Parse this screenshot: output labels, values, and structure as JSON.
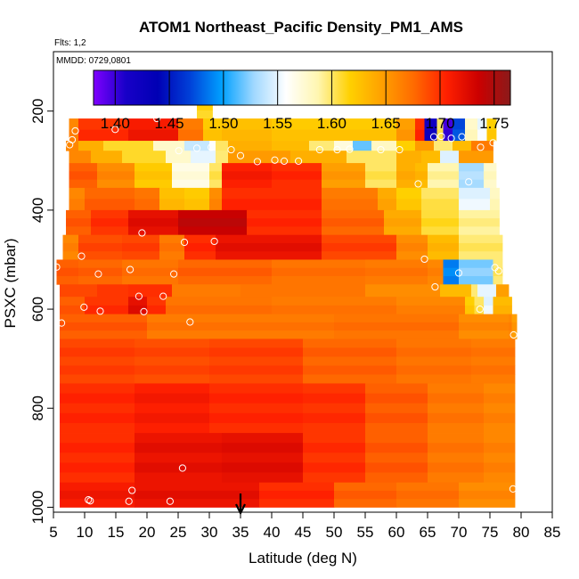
{
  "chart_data": {
    "type": "heatmap",
    "title": "ATOM1 Northeast_Pacific Density_PM1_AMS",
    "flights_label": "Flts: 1,2",
    "date_label": "MMDD: 0729,0801",
    "xlabel": "Latitude (deg N)",
    "ylabel": "PSXC (mbar)",
    "xlim": [
      5,
      85
    ],
    "ylim": [
      1010,
      80
    ],
    "x_ticks": [
      "5",
      "10",
      "15",
      "20",
      "25",
      "30",
      "35",
      "40",
      "45",
      "50",
      "55",
      "60",
      "65",
      "70",
      "75",
      "80",
      "85"
    ],
    "y_ticks": [
      "200",
      "400",
      "600",
      "800",
      "1000"
    ],
    "colorbar": {
      "range": [
        1.38,
        1.765
      ],
      "tick_labels": [
        "1.40",
        "1.45",
        "1.50",
        "1.55",
        "1.60",
        "1.65",
        "1.70",
        "1.75"
      ],
      "stops": [
        "#7f00ff",
        "#1800c8",
        "#0000b4",
        "#0040d8",
        "#00a0ff",
        "#a0d8ff",
        "#ffffff",
        "#fff6b0",
        "#ffd000",
        "#ffa000",
        "#ff6a00",
        "#ff2000",
        "#cc0000",
        "#8b1a1a"
      ]
    },
    "arrow_marker_latitude": 35,
    "bands": [
      {
        "p": [
          165,
          215
        ],
        "segments": [
          [
            28,
            30.5,
            1.61
          ]
        ]
      },
      {
        "p": [
          215,
          260
        ],
        "segments": [
          [
            7.5,
            9,
            1.66
          ],
          [
            9,
            17,
            1.7
          ],
          [
            17,
            25,
            1.71
          ],
          [
            25,
            29,
            1.67
          ],
          [
            29,
            32,
            1.62
          ],
          [
            32,
            40,
            1.63
          ],
          [
            40,
            60,
            1.62
          ],
          [
            60,
            63,
            1.65
          ],
          [
            63,
            64.5,
            1.7
          ],
          [
            64.5,
            66.5,
            1.42
          ],
          [
            66.5,
            67.5,
            1.6
          ],
          [
            67.5,
            69,
            1.4
          ],
          [
            69,
            71,
            1.47
          ],
          [
            71,
            73,
            1.58
          ],
          [
            73,
            74.5,
            1.55
          ],
          [
            74.5,
            76,
            1.62
          ]
        ]
      },
      {
        "p": [
          260,
          280
        ],
        "segments": [
          [
            7,
            9,
            1.66
          ],
          [
            9,
            13,
            1.64
          ],
          [
            13,
            21,
            1.61
          ],
          [
            21,
            26,
            1.58
          ],
          [
            26,
            30,
            1.54
          ],
          [
            30,
            31,
            1.56
          ],
          [
            31,
            33,
            1.6
          ],
          [
            33,
            40,
            1.64
          ],
          [
            40,
            46,
            1.63
          ],
          [
            46,
            50,
            1.6
          ],
          [
            50,
            53,
            1.57
          ],
          [
            53,
            56,
            1.52
          ],
          [
            56,
            60,
            1.58
          ],
          [
            60,
            63,
            1.62
          ],
          [
            63,
            66,
            1.65
          ],
          [
            66,
            69,
            1.6
          ],
          [
            69,
            72,
            1.63
          ],
          [
            72,
            75.5,
            1.67
          ]
        ]
      },
      {
        "p": [
          280,
          305
        ],
        "segments": [
          [
            7.5,
            11,
            1.66
          ],
          [
            11,
            16,
            1.64
          ],
          [
            16,
            23,
            1.61
          ],
          [
            23,
            27,
            1.58
          ],
          [
            27,
            31,
            1.55
          ],
          [
            31,
            33,
            1.6
          ],
          [
            33,
            43,
            1.65
          ],
          [
            43,
            52,
            1.64
          ],
          [
            52,
            60,
            1.6
          ],
          [
            60,
            64,
            1.64
          ],
          [
            64,
            67,
            1.63
          ],
          [
            67,
            70,
            1.55
          ],
          [
            70,
            75.5,
            1.65
          ]
        ]
      },
      {
        "p": [
          305,
          355
        ],
        "segments": [
          [
            7.5,
            12,
            1.68
          ],
          [
            12,
            18,
            1.66
          ],
          [
            18,
            24,
            1.62
          ],
          [
            24,
            30,
            1.57
          ],
          [
            30,
            32,
            1.6
          ],
          [
            32,
            40,
            1.71
          ],
          [
            40,
            48,
            1.7
          ],
          [
            48,
            55,
            1.65
          ],
          [
            55,
            60,
            1.6
          ],
          [
            60,
            63,
            1.64
          ],
          [
            63,
            65,
            1.63
          ],
          [
            65,
            70,
            1.59
          ],
          [
            70,
            74,
            1.53
          ],
          [
            74,
            76,
            1.58
          ]
        ]
      },
      {
        "p": [
          355,
          400
        ],
        "segments": [
          [
            7.5,
            10,
            1.66
          ],
          [
            10,
            18,
            1.68
          ],
          [
            18,
            22,
            1.67
          ],
          [
            22,
            26,
            1.63
          ],
          [
            26,
            30,
            1.62
          ],
          [
            30,
            32,
            1.66
          ],
          [
            32,
            48,
            1.7
          ],
          [
            48,
            57,
            1.67
          ],
          [
            57,
            60,
            1.64
          ],
          [
            60,
            64,
            1.62
          ],
          [
            64,
            70,
            1.6
          ],
          [
            70,
            75,
            1.55
          ],
          [
            75,
            76.5,
            1.58
          ]
        ]
      },
      {
        "p": [
          400,
          450
        ],
        "segments": [
          [
            7,
            11,
            1.68
          ],
          [
            11,
            17,
            1.7
          ],
          [
            17,
            25,
            1.72
          ],
          [
            25,
            36,
            1.74
          ],
          [
            36,
            48,
            1.7
          ],
          [
            48,
            58,
            1.68
          ],
          [
            58,
            64,
            1.64
          ],
          [
            64,
            70,
            1.61
          ],
          [
            70,
            76.5,
            1.59
          ]
        ]
      },
      {
        "p": [
          450,
          500
        ],
        "segments": [
          [
            6.5,
            9,
            1.66
          ],
          [
            9,
            16,
            1.69
          ],
          [
            16,
            22,
            1.69
          ],
          [
            22,
            26,
            1.67
          ],
          [
            26,
            31,
            1.7
          ],
          [
            31,
            48,
            1.72
          ],
          [
            48,
            60,
            1.69
          ],
          [
            60,
            65,
            1.66
          ],
          [
            65,
            70,
            1.63
          ],
          [
            70,
            77,
            1.6
          ]
        ]
      },
      {
        "p": [
          500,
          550
        ],
        "segments": [
          [
            5.5,
            9,
            1.68
          ],
          [
            9,
            16,
            1.68
          ],
          [
            16,
            25,
            1.67
          ],
          [
            25,
            40,
            1.68
          ],
          [
            40,
            55,
            1.67
          ],
          [
            55,
            65,
            1.67
          ],
          [
            65,
            67.5,
            1.66
          ],
          [
            67.5,
            70,
            1.49
          ],
          [
            70,
            75.5,
            1.52
          ],
          [
            75.5,
            77,
            1.6
          ]
        ]
      },
      {
        "p": [
          550,
          575
        ],
        "segments": [
          [
            6,
            12,
            1.69
          ],
          [
            12,
            17,
            1.7
          ],
          [
            17,
            24,
            1.7
          ],
          [
            24,
            35,
            1.67
          ],
          [
            35,
            55,
            1.67
          ],
          [
            55,
            67,
            1.66
          ],
          [
            67,
            72,
            1.63
          ],
          [
            72,
            73,
            1.6
          ],
          [
            73,
            76,
            1.55
          ],
          [
            76,
            78,
            1.65
          ]
        ]
      },
      {
        "p": [
          575,
          610
        ],
        "segments": [
          [
            6,
            10,
            1.68
          ],
          [
            10,
            17,
            1.7
          ],
          [
            17,
            20,
            1.72
          ],
          [
            20,
            23,
            1.7
          ],
          [
            23,
            40,
            1.67
          ],
          [
            40,
            60,
            1.67
          ],
          [
            60,
            71,
            1.66
          ],
          [
            71,
            72.5,
            1.62
          ],
          [
            72.5,
            74,
            1.6
          ],
          [
            74,
            75.5,
            1.55
          ],
          [
            75.5,
            78.5,
            1.63
          ]
        ]
      },
      {
        "p": [
          610,
          660
        ],
        "segments": [
          [
            6,
            20,
            1.68
          ],
          [
            20,
            50,
            1.67
          ],
          [
            50,
            70,
            1.67
          ],
          [
            70,
            78,
            1.66
          ],
          [
            78,
            78.5,
            1.66
          ],
          [
            78.5,
            79.3,
            1.65
          ]
        ]
      },
      {
        "p": [
          660,
          750
        ],
        "segments": [
          [
            6,
            18,
            1.69
          ],
          [
            18,
            30,
            1.69
          ],
          [
            30,
            45,
            1.69
          ],
          [
            45,
            60,
            1.68
          ],
          [
            60,
            72,
            1.67
          ],
          [
            72,
            79,
            1.67
          ]
        ]
      },
      {
        "p": [
          750,
          850
        ],
        "segments": [
          [
            6,
            18,
            1.7
          ],
          [
            18,
            30,
            1.71
          ],
          [
            30,
            45,
            1.7
          ],
          [
            45,
            55,
            1.7
          ],
          [
            55,
            65,
            1.68
          ],
          [
            65,
            74,
            1.67
          ],
          [
            74,
            79,
            1.66
          ]
        ]
      },
      {
        "p": [
          850,
          950
        ],
        "segments": [
          [
            6,
            18,
            1.7
          ],
          [
            18,
            32,
            1.72
          ],
          [
            32,
            45,
            1.72
          ],
          [
            45,
            55,
            1.7
          ],
          [
            55,
            65,
            1.68
          ],
          [
            65,
            74,
            1.67
          ],
          [
            74,
            79,
            1.66
          ]
        ]
      },
      {
        "p": [
          950,
          1000
        ],
        "segments": [
          [
            6,
            18,
            1.71
          ],
          [
            18,
            38,
            1.72
          ],
          [
            38,
            50,
            1.7
          ],
          [
            50,
            60,
            1.68
          ],
          [
            60,
            70,
            1.67
          ],
          [
            70,
            79,
            1.66
          ]
        ]
      }
    ],
    "points": [
      [
        8.5,
        240
      ],
      [
        14.9,
        237
      ],
      [
        21.6,
        215
      ],
      [
        25.1,
        280
      ],
      [
        28,
        275
      ],
      [
        30.3,
        273
      ],
      [
        33.5,
        278
      ],
      [
        35,
        290
      ],
      [
        37.7,
        302
      ],
      [
        40.5,
        299
      ],
      [
        42,
        301
      ],
      [
        44.3,
        301
      ],
      [
        47.7,
        278
      ],
      [
        50.5,
        278
      ],
      [
        52.5,
        277
      ],
      [
        57.5,
        278
      ],
      [
        60.5,
        278
      ],
      [
        63.5,
        347
      ],
      [
        66,
        252
      ],
      [
        67.2,
        251
      ],
      [
        68.8,
        255
      ],
      [
        70.5,
        252
      ],
      [
        73.5,
        273
      ],
      [
        75.5,
        264
      ],
      [
        71.6,
        343
      ],
      [
        8,
        258
      ],
      [
        7.6,
        268
      ],
      [
        9.5,
        493
      ],
      [
        12.2,
        529
      ],
      [
        17.3,
        520
      ],
      [
        19.2,
        446
      ],
      [
        26,
        465
      ],
      [
        30.8,
        463
      ],
      [
        5.5,
        515
      ],
      [
        6.3,
        628
      ],
      [
        9.9,
        596
      ],
      [
        12.5,
        604
      ],
      [
        18.7,
        574
      ],
      [
        19.5,
        605
      ],
      [
        22.6,
        574
      ],
      [
        24.3,
        529
      ],
      [
        26.9,
        626
      ],
      [
        64.5,
        499
      ],
      [
        66.2,
        555
      ],
      [
        70,
        527
      ],
      [
        75.8,
        516
      ],
      [
        76.4,
        523
      ],
      [
        78.8,
        652
      ],
      [
        73.4,
        600
      ],
      [
        5.1,
        988
      ],
      [
        10.6,
        985
      ],
      [
        10.9,
        987
      ],
      [
        17.1,
        988
      ],
      [
        17.6,
        966
      ],
      [
        23.7,
        988
      ],
      [
        25.7,
        921
      ],
      [
        78.7,
        963
      ]
    ]
  }
}
